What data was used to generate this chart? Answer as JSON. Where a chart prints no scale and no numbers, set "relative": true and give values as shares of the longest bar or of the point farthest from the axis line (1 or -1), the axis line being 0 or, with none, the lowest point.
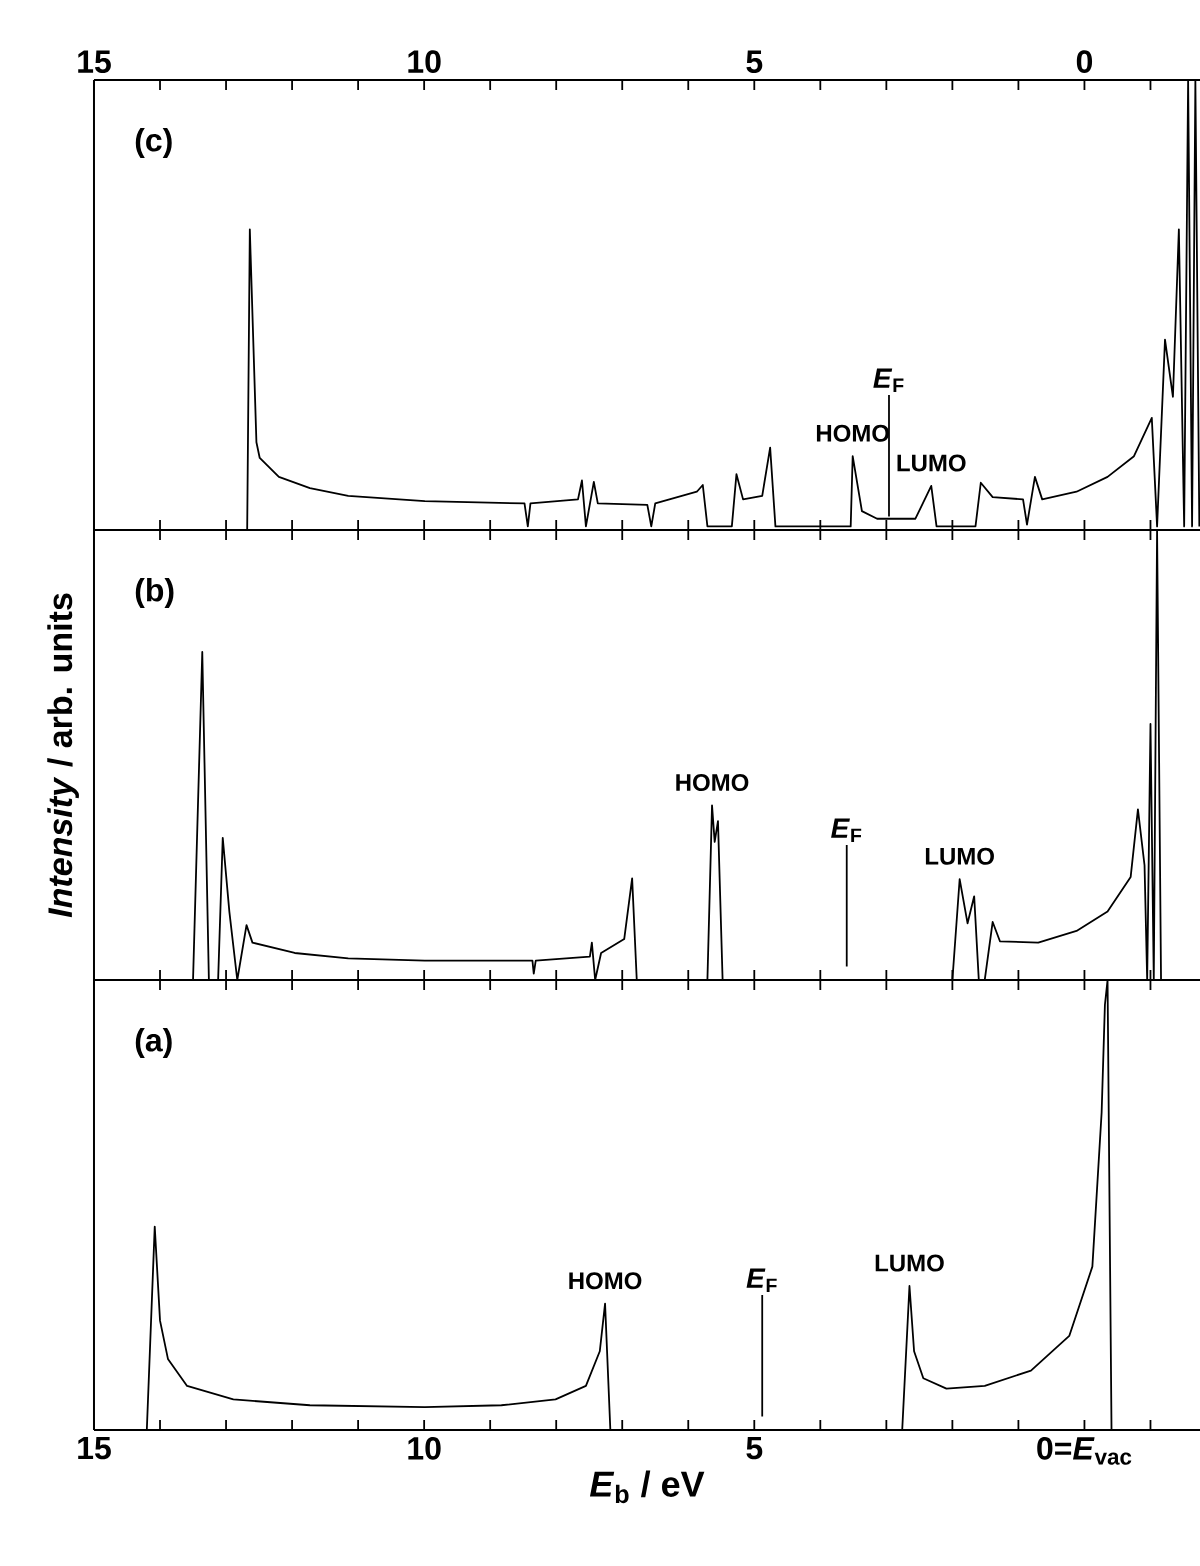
{
  "chart_data": [
    {
      "type": "line",
      "relative": true,
      "color": "#000000",
      "xlim": [
        15,
        -1.75
      ],
      "xticks": [
        15,
        {
          "value": 14,
          "label": null
        },
        {
          "value": 13,
          "label": null
        },
        {
          "value": 12,
          "label": null
        },
        {
          "value": 11,
          "label": null
        },
        10,
        {
          "value": 9,
          "label": null
        },
        {
          "value": 8,
          "label": null
        },
        {
          "value": 7,
          "label": null
        },
        {
          "value": 6,
          "label": null
        },
        5,
        {
          "value": 4,
          "label": null
        },
        {
          "value": 3,
          "label": null
        },
        {
          "value": 2,
          "label": null
        },
        {
          "value": 1,
          "label": null
        },
        0,
        {
          "value": -1,
          "label": null
        }
      ],
      "tick_labels": "x",
      "x": [
        12.68,
        12.64,
        12.54,
        12.49,
        12.2,
        11.73,
        11.15,
        9.99,
        8.48,
        8.43,
        8.39,
        7.67,
        7.61,
        7.55,
        7.43,
        7.37,
        6.62,
        6.56,
        6.5,
        5.87,
        5.78,
        5.71,
        5.34,
        5.27,
        5.17,
        4.88,
        4.76,
        4.68,
        3.54,
        3.51,
        3.37,
        3.14,
        2.56,
        2.32,
        2.24,
        1.65,
        1.57,
        1.39,
        0.93,
        0.87,
        0.75,
        0.64,
        0.12,
        -0.35,
        -0.75,
        -1.02,
        -1.1,
        -1.22,
        -1.34,
        -1.43,
        -1.51,
        -1.57,
        -1.63,
        -1.68,
        -1.74
      ],
      "values": [
        0,
        0.668,
        0.195,
        0.16,
        0.118,
        0.093,
        0.076,
        0.064,
        0.059,
        0.008,
        0.059,
        0.068,
        0.11,
        0.008,
        0.107,
        0.059,
        0.056,
        0.008,
        0.059,
        0.085,
        0.1,
        0.008,
        0.008,
        0.124,
        0.068,
        0.076,
        0.183,
        0.008,
        0.008,
        0.164,
        0.042,
        0.025,
        0.025,
        0.098,
        0.008,
        0.008,
        0.105,
        0.073,
        0.068,
        0.012,
        0.118,
        0.068,
        0.085,
        0.118,
        0.164,
        0.249,
        0.008,
        0.423,
        0.296,
        0.668,
        0.008,
        1.0,
        0.008,
        1.0,
        0.008
      ],
      "ref_lines": [
        {
          "axis": "x",
          "value": 2.96,
          "label": "*E*$_{F}$"
        }
      ],
      "annotations": [
        "(c)",
        {
          "text": "HOMO",
          "x": 3.51,
          "y": 0.164
        },
        {
          "text": "LUMO",
          "x": 2.32,
          "y": 0.098
        }
      ]
    },
    {
      "type": "line",
      "relative": true,
      "color": "#000000",
      "xlim": [
        15,
        -1.75
      ],
      "xticks": [
        15,
        {
          "value": 14,
          "label": null
        },
        {
          "value": 13,
          "label": null
        },
        {
          "value": 12,
          "label": null
        },
        {
          "value": 11,
          "label": null
        },
        10,
        {
          "value": 9,
          "label": null
        },
        {
          "value": 8,
          "label": null
        },
        {
          "value": 7,
          "label": null
        },
        {
          "value": 6,
          "label": null
        },
        5,
        {
          "value": 4,
          "label": null
        },
        {
          "value": 3,
          "label": null
        },
        {
          "value": 2,
          "label": null
        },
        {
          "value": 1,
          "label": null
        },
        0,
        {
          "value": -1,
          "label": null
        }
      ],
      "tick_labels": false,
      "ylabel": "*Intensity* / arb. units",
      "x": [
        13.5,
        13.36,
        13.26,
        13.12,
        13.05,
        12.95,
        12.83,
        12.69,
        12.6,
        11.96,
        11.15,
        9.99,
        8.36,
        8.34,
        8.31,
        7.49,
        7.46,
        7.41,
        7.32,
        6.97,
        6.85,
        6.78,
        5.71,
        5.64,
        5.6,
        5.55,
        5.48,
        2.0,
        1.89,
        1.77,
        1.67,
        1.6,
        1.51,
        1.39,
        1.28,
        0.7,
        0.12,
        -0.35,
        -0.7,
        -0.81,
        -0.91,
        -0.95,
        -1.0,
        -1.05,
        -1.1,
        -1.16
      ],
      "values": [
        0,
        0.729,
        0,
        0,
        0.316,
        0.152,
        0,
        0.122,
        0.083,
        0.06,
        0.048,
        0.043,
        0.043,
        0.014,
        0.043,
        0.052,
        0.083,
        0,
        0.06,
        0.091,
        0.226,
        0,
        0,
        0.388,
        0.307,
        0.353,
        0,
        0,
        0.224,
        0.126,
        0.186,
        0,
        0,
        0.129,
        0.086,
        0.083,
        0.109,
        0.152,
        0.229,
        0.379,
        0.255,
        0,
        0.569,
        0,
        1.0,
        0
      ],
      "ref_lines": [
        {
          "axis": "x",
          "value": 3.6,
          "label": "*E*$_{F}$"
        }
      ],
      "annotations": [
        "(b)",
        {
          "text": "HOMO",
          "x": 5.64,
          "y": 0.388
        },
        {
          "text": "LUMO",
          "x": 1.89,
          "y": 0.224
        }
      ]
    },
    {
      "type": "line",
      "relative": true,
      "color": "#000000",
      "xlim": [
        15,
        -1.75
      ],
      "xticks": [
        15,
        {
          "value": 14,
          "label": null
        },
        {
          "value": 13,
          "label": null
        },
        {
          "value": 12,
          "label": null
        },
        {
          "value": 11,
          "label": null
        },
        10,
        {
          "value": 9,
          "label": null
        },
        {
          "value": 8,
          "label": null
        },
        {
          "value": 7,
          "label": null
        },
        {
          "value": 6,
          "label": null
        },
        5,
        {
          "value": 4,
          "label": null
        },
        {
          "value": 3,
          "label": null
        },
        {
          "value": 2,
          "label": null
        },
        {
          "value": 1,
          "label": null
        },
        {
          "value": 0,
          "label": "0=*E*$_{vac}$"
        },
        {
          "value": -1,
          "label": null
        }
      ],
      "tick_labels": "x",
      "xlabel": "*E*$_{b}$ / eV",
      "x": [
        14.2,
        14.08,
        14.0,
        13.88,
        13.59,
        12.89,
        11.73,
        9.99,
        8.83,
        8.01,
        7.55,
        7.34,
        7.26,
        7.18,
        2.76,
        2.65,
        2.58,
        2.44,
        2.09,
        1.51,
        0.81,
        0.23,
        -0.12,
        -0.26,
        -0.31,
        -0.35,
        -0.41
      ],
      "values": [
        0,
        0.452,
        0.243,
        0.158,
        0.098,
        0.068,
        0.055,
        0.051,
        0.055,
        0.068,
        0.098,
        0.175,
        0.281,
        0,
        0,
        0.32,
        0.175,
        0.115,
        0.092,
        0.098,
        0.132,
        0.209,
        0.363,
        0.705,
        0.945,
        1.0,
        0
      ],
      "ref_lines": [
        {
          "axis": "x",
          "value": 4.88,
          "label": "*E*$_{F}$"
        }
      ],
      "annotations": [
        "(a)",
        {
          "text": "HOMO",
          "x": 7.26,
          "y": 0.281
        },
        {
          "text": "LUMO",
          "x": 2.65,
          "y": 0.32
        }
      ]
    }
  ]
}
